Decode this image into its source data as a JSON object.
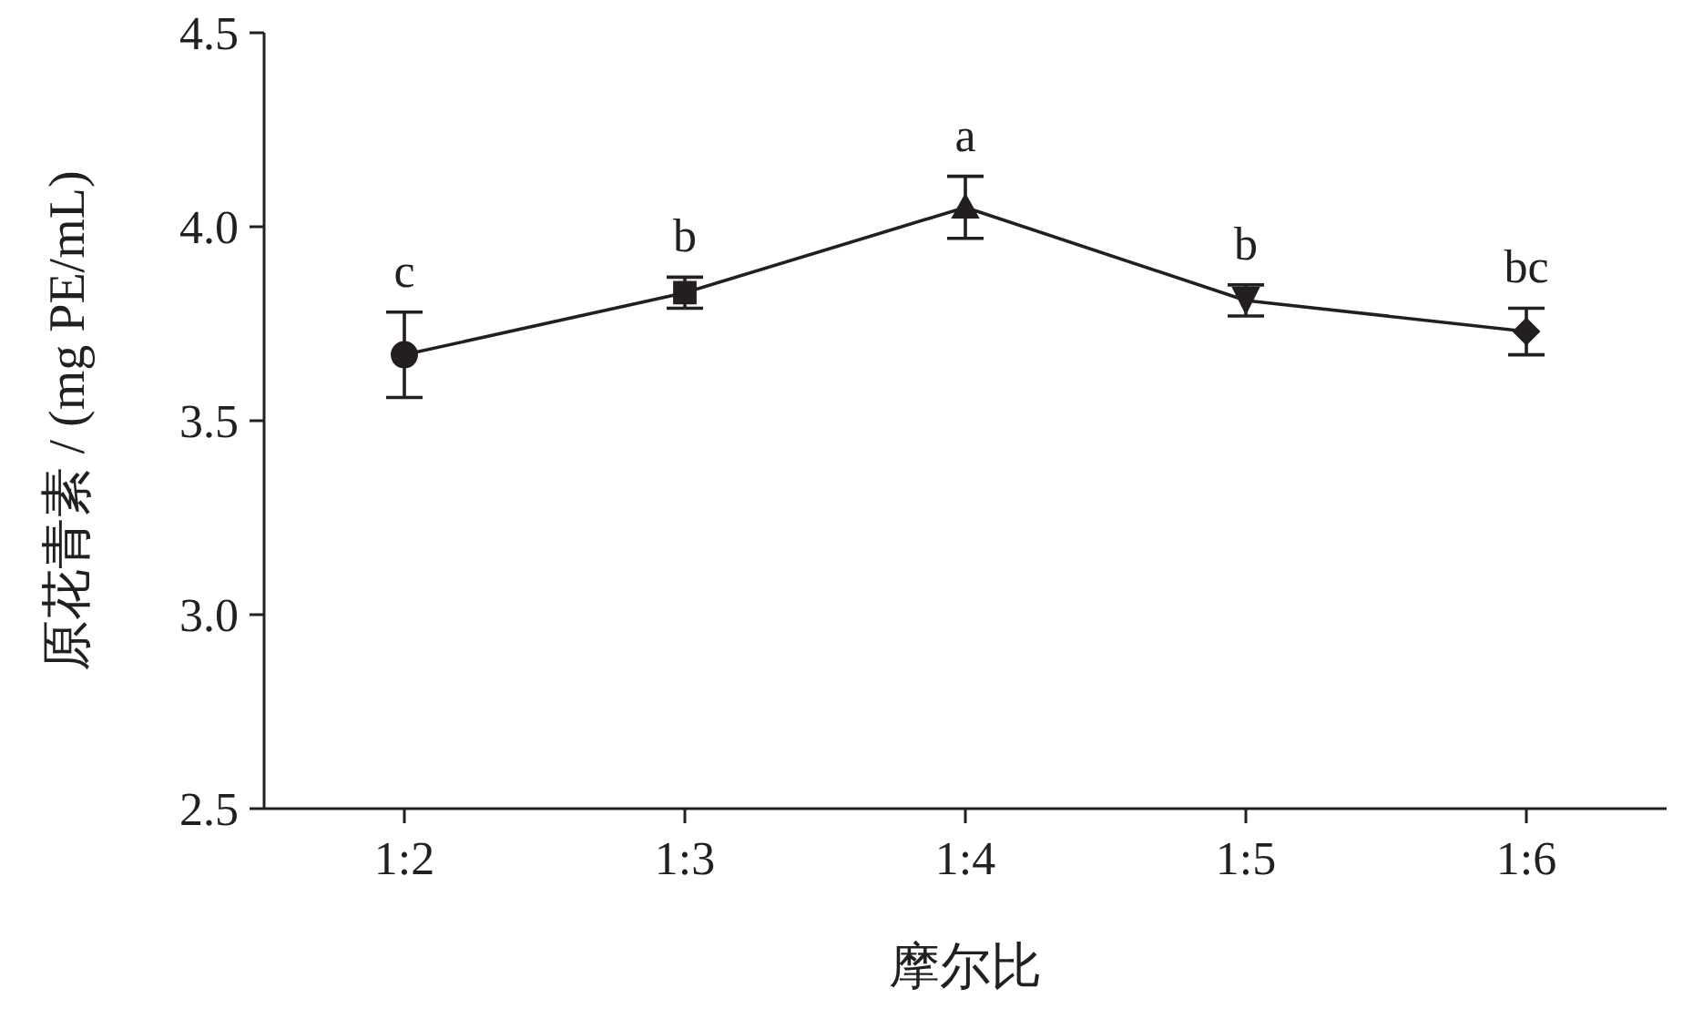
{
  "chart_data": {
    "type": "line",
    "xlabel": "摩尔比",
    "ylabel": "原花青素 / (mg PE/mL)",
    "categories": [
      "1:2",
      "1:3",
      "1:4",
      "1:5",
      "1:6"
    ],
    "series": [
      {
        "color": "#231f20",
        "values": [
          3.67,
          3.83,
          4.05,
          3.81,
          3.73
        ],
        "errors": [
          0.11,
          0.04,
          0.08,
          0.04,
          0.06
        ],
        "marker": [
          "circle",
          "square",
          "triangle",
          "triangle-down",
          "diamond"
        ]
      }
    ],
    "ylim": [
      2.5,
      4.5
    ],
    "yticks": [
      2.5,
      {
        "value": 3,
        "label": "3.0"
      },
      3.5,
      {
        "value": 4,
        "label": "4.0"
      },
      4.5
    ],
    "grid": false,
    "annotations": [
      "c",
      "b",
      "a",
      "b",
      "bc"
    ]
  }
}
